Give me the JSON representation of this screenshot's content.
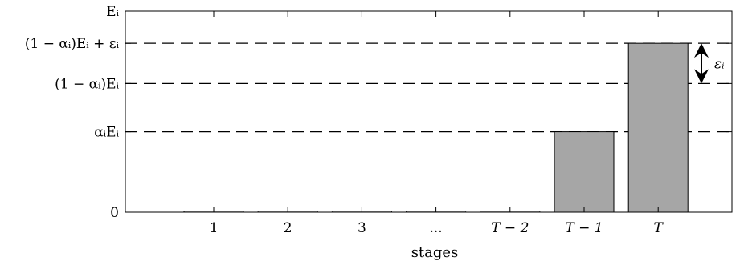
{
  "chart_data": {
    "type": "bar",
    "xlabel": "stages",
    "ylabel": "",
    "grid": false,
    "categories": [
      "1",
      "2",
      "3",
      "...",
      "T − 2",
      "T − 1",
      "T"
    ],
    "values": [
      0,
      0,
      0,
      0,
      0,
      0.4,
      0.84
    ],
    "ylim": [
      0,
      1
    ],
    "yticks": [
      {
        "value": 0,
        "label": "0"
      },
      {
        "value": 0.4,
        "label": "αᵢEᵢ"
      },
      {
        "value": 0.64,
        "label": "(1 − αᵢ)Eᵢ"
      },
      {
        "value": 0.84,
        "label": "(1 − αᵢ)Eᵢ + εᵢ"
      },
      {
        "value": 1,
        "label": "Eᵢ"
      }
    ],
    "reference_lines": [
      0.4,
      0.64,
      0.84
    ],
    "annotation": {
      "label": "εᵢ",
      "from": 0.64,
      "to": 0.84
    },
    "colors": {
      "bar_fill": "#a6a6a6",
      "bar_stroke": "#000000",
      "dashed_line": "#000000"
    }
  }
}
